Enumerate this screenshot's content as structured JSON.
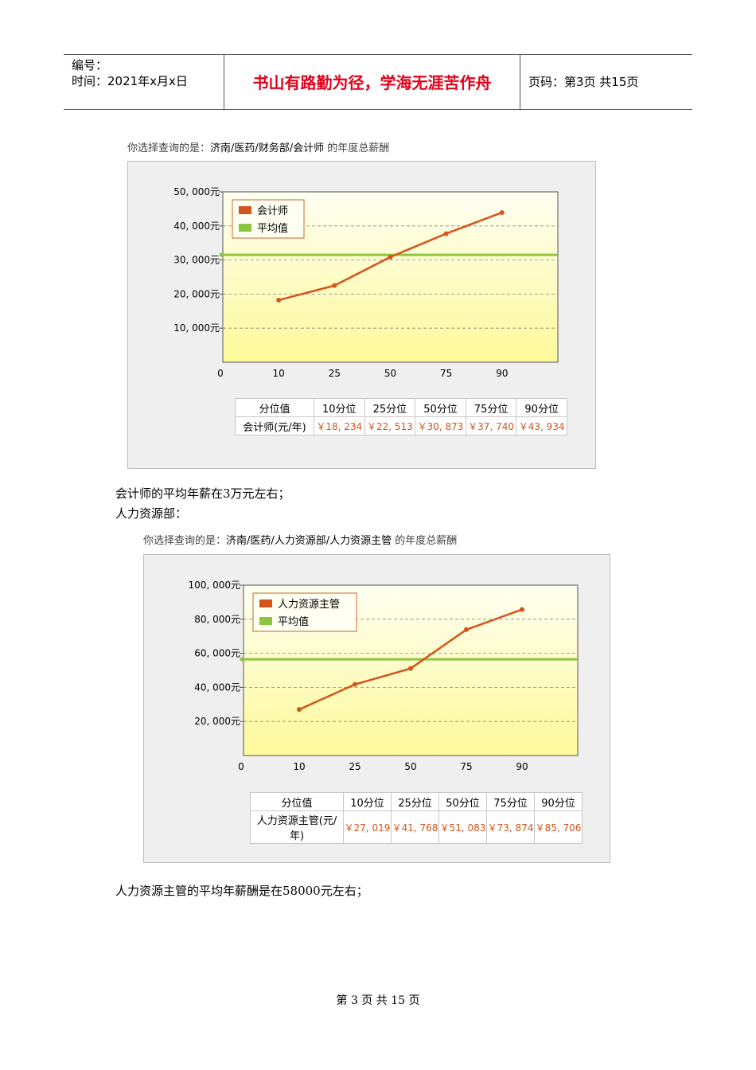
{
  "header": {
    "number_label": "编号：",
    "time_label": "时间：2021年x月x日",
    "motto": "书山有路勤为径，学海无涯苦作舟",
    "page_label": "页码：第3页  共15页"
  },
  "section1": {
    "caption_prefix": "你选择查询的是：",
    "caption_path": "济南/医药/财务部/会计师",
    "caption_suffix": " 的年度总薪酬",
    "table_header": [
      "分位值",
      "10分位",
      "25分位",
      "50分位",
      "75分位",
      "90分位"
    ],
    "table_row_label": "会计师(元/年)",
    "table_values": [
      "￥18, 234",
      "￥22, 513",
      "￥30, 873",
      "￥37, 740",
      "￥43, 934"
    ],
    "conclusion": "会计师的平均年薪在3万元左右；"
  },
  "section2_title": "人力资源部：",
  "section2": {
    "caption_prefix": "你选择查询的是：",
    "caption_path": "济南/医药/人力资源部/人力资源主管",
    "caption_suffix": " 的年度总薪酬",
    "table_header": [
      "分位值",
      "10分位",
      "25分位",
      "50分位",
      "75分位",
      "90分位"
    ],
    "table_row_label": "人力资源主管(元/年)",
    "table_values": [
      "￥27, 019",
      "￥41, 768",
      "￥51, 083",
      "￥73, 874",
      "￥85, 706"
    ],
    "conclusion": "人力资源主管的平均年薪酬是在58000元左右；"
  },
  "footer": {
    "page_text": "第 3 页 共 15 页"
  },
  "colors": {
    "line": "#d4541c",
    "average": "#8cc63e",
    "motto": "#e2001a"
  },
  "chart_data": [
    {
      "type": "line",
      "x_tick_labels": [
        "0",
        "10",
        "25",
        "50",
        "75",
        "90"
      ],
      "y_tick_labels": [
        "10, 000元",
        "20, 000元",
        "30, 000元",
        "40, 000元",
        "50, 000元"
      ],
      "ylim": [
        0,
        50000
      ],
      "legend_placement": "top-left",
      "series": [
        {
          "name": "会计师",
          "x": [
            "10",
            "25",
            "50",
            "75",
            "90"
          ],
          "values": [
            18234,
            22513,
            30873,
            37740,
            43934
          ]
        },
        {
          "name": "平均值",
          "values": [
            31500
          ]
        }
      ]
    },
    {
      "type": "line",
      "x_tick_labels": [
        "0",
        "10",
        "25",
        "50",
        "75",
        "90"
      ],
      "y_tick_labels": [
        "20, 000元",
        "40, 000元",
        "60, 000元",
        "80, 000元",
        "100, 000元"
      ],
      "ylim": [
        0,
        100000
      ],
      "legend_placement": "top-left",
      "series": [
        {
          "name": "人力资源主管",
          "x": [
            "10",
            "25",
            "50",
            "75",
            "90"
          ],
          "values": [
            27019,
            41768,
            51083,
            73874,
            85706
          ]
        },
        {
          "name": "平均值",
          "values": [
            56500
          ]
        }
      ]
    }
  ]
}
